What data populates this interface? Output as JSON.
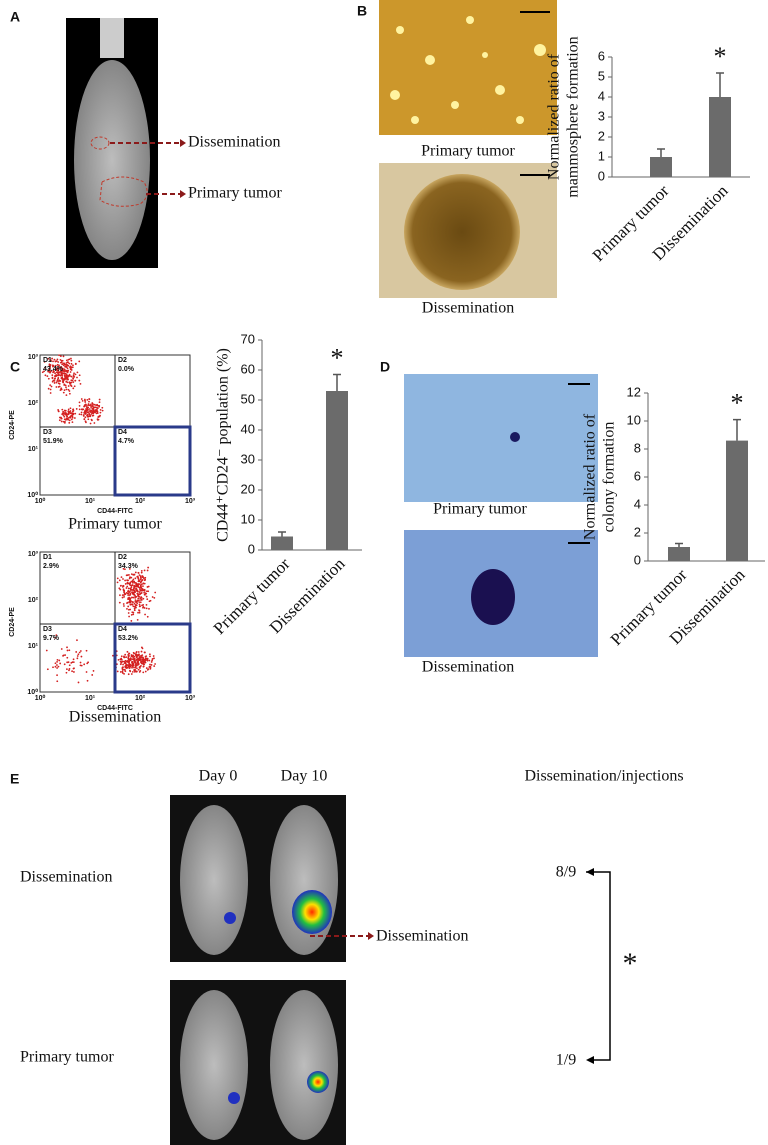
{
  "panel_labels": [
    "A",
    "B",
    "C",
    "D",
    "E"
  ],
  "panel_a": {
    "labels": [
      "Dissemination",
      "Primary tumor"
    ]
  },
  "panel_b": {
    "captions": [
      "Primary tumor",
      "Dissemination"
    ]
  },
  "panel_c": {
    "plots": [
      {
        "quadrants": [
          {
            "name": "D1",
            "percent": "43.4%"
          },
          {
            "name": "D2",
            "percent": "0.0%"
          },
          {
            "name": "D3",
            "percent": "51.9%"
          },
          {
            "name": "D4",
            "percent": "4.7%"
          }
        ],
        "caption": "Primary tumor"
      },
      {
        "quadrants": [
          {
            "name": "D1",
            "percent": "2.9%"
          },
          {
            "name": "D2",
            "percent": "34.3%"
          },
          {
            "name": "D3",
            "percent": "9.7%"
          },
          {
            "name": "D4",
            "percent": "53.2%"
          }
        ],
        "caption": "Dissemination"
      }
    ],
    "y_axis": "CD24-PE",
    "x_axis": "CD44-FITC",
    "axis_ticks": [
      "10⁰",
      "10¹",
      "10²",
      "10³"
    ]
  },
  "panel_d": {
    "captions": [
      "Primary tumor",
      "Dissemination"
    ]
  },
  "panel_e": {
    "columns": [
      "Day 0",
      "Day 10"
    ],
    "rows": [
      "Dissemination",
      "Primary tumor"
    ],
    "arrow_label": "Dissemination",
    "summary_title": "Dissemination/injections",
    "ratios": [
      "8/9",
      "1/9"
    ],
    "significance": "*"
  },
  "chart_data": [
    {
      "type": "bar",
      "ylabel": [
        "Normalized ratio of",
        "mammosphere formation"
      ],
      "categories": [
        "Primary tumor",
        "Dissemination"
      ],
      "values": [
        1,
        4.0
      ],
      "errors": [
        0.4,
        1.2
      ],
      "color": "#6b6b6b",
      "ylim": [
        0,
        6
      ],
      "yticks": [
        0,
        1,
        2,
        3,
        4,
        5,
        6
      ],
      "annotation": "*"
    },
    {
      "type": "bar",
      "ylabel": [
        "CD44⁺CD24⁻ population  (%)"
      ],
      "categories": [
        "Primary tumor",
        "Dissemination"
      ],
      "values": [
        4.5,
        53
      ],
      "errors": [
        1.5,
        5.5
      ],
      "color": "#6b6b6b",
      "ylim": [
        0,
        70
      ],
      "yticks": [
        0,
        10,
        20,
        30,
        40,
        50,
        60,
        70
      ],
      "annotation": "*"
    },
    {
      "type": "bar",
      "ylabel": [
        "Normalized ratio of",
        "colony formation"
      ],
      "categories": [
        "Primary tumor",
        "Dissemination"
      ],
      "values": [
        1,
        8.6
      ],
      "errors": [
        0.25,
        1.5
      ],
      "color": "#6b6b6b",
      "ylim": [
        0,
        12
      ],
      "yticks": [
        0,
        2,
        4,
        6,
        8,
        10,
        12
      ],
      "annotation": "*"
    }
  ]
}
